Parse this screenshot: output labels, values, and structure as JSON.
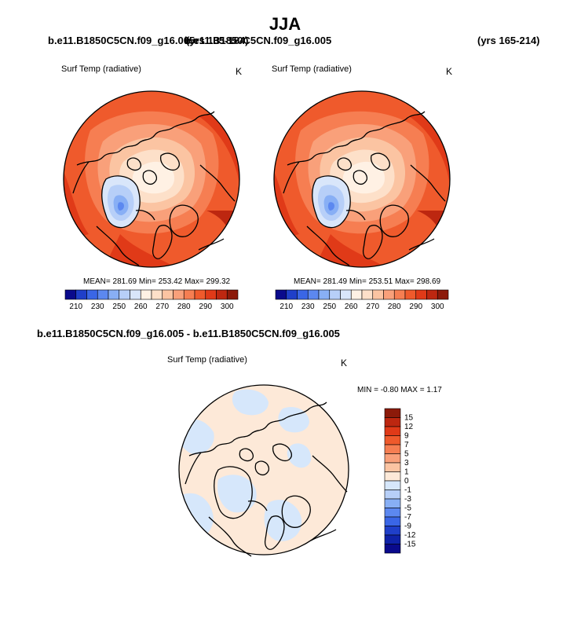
{
  "title": "JJA",
  "top_left": {
    "case_label": "b.e11.B1850C5CN.f09_g16.005",
    "years_label": "(yrs 135-184)",
    "variable": "Surf Temp (radiative)",
    "units": "K",
    "stats": "MEAN= 281.69  Min= 253.42  Max= 299.32"
  },
  "top_right": {
    "case_label": "b.e11.B1850C5CN.f09_g16.005",
    "years_label": "(yrs 165-214)",
    "variable": "Surf Temp (radiative)",
    "units": "K",
    "stats": "MEAN= 281.49  Min= 253.51  Max= 298.69"
  },
  "bottom": {
    "diff_label": "b.e11.B1850C5CN.f09_g16.005 - b.e11.B1850C5CN.f09_g16.005",
    "variable": "Surf Temp (radiative)",
    "units": "K",
    "stats": "MIN =  -0.80 MAX =   1.17"
  },
  "chart_data": [
    {
      "type": "heatmap",
      "projection": "north polar stereographic",
      "variable": "Surf Temp (radiative)",
      "units": "K",
      "mean": 281.69,
      "min": 253.42,
      "max": 299.32,
      "colorbar": {
        "orientation": "horizontal",
        "ticks": [
          "210",
          "230",
          "250",
          "260",
          "270",
          "280",
          "290",
          "300"
        ],
        "colors": [
          "#0a0a8c",
          "#1f3fc9",
          "#3a66e6",
          "#5c88f0",
          "#88aff5",
          "#b7cff8",
          "#d9e6fa",
          "#fff1e4",
          "#fde0c9",
          "#fbc4a2",
          "#f9a07a",
          "#f67e52",
          "#ef5a2c",
          "#e03a18",
          "#bd2710",
          "#8c1a0a"
        ]
      }
    },
    {
      "type": "heatmap",
      "projection": "north polar stereographic",
      "variable": "Surf Temp (radiative)",
      "units": "K",
      "mean": 281.49,
      "min": 253.51,
      "max": 298.69,
      "colorbar": {
        "orientation": "horizontal",
        "ticks": [
          "210",
          "230",
          "250",
          "260",
          "270",
          "280",
          "290",
          "300"
        ],
        "colors": [
          "#0a0a8c",
          "#1f3fc9",
          "#3a66e6",
          "#5c88f0",
          "#88aff5",
          "#b7cff8",
          "#d9e6fa",
          "#fff1e4",
          "#fde0c9",
          "#fbc4a2",
          "#f9a07a",
          "#f67e52",
          "#ef5a2c",
          "#e03a18",
          "#bd2710",
          "#8c1a0a"
        ]
      }
    },
    {
      "type": "heatmap",
      "projection": "north polar stereographic",
      "variable": "Surf Temp (radiative)",
      "units": "K",
      "min": -0.8,
      "max": 1.17,
      "colorbar": {
        "orientation": "vertical",
        "ticks": [
          "15",
          "12",
          "9",
          "7",
          "5",
          "3",
          "1",
          "0",
          "-1",
          "-3",
          "-5",
          "-7",
          "-9",
          "-12",
          "-15"
        ],
        "colors": [
          "#8c1a0a",
          "#bd2710",
          "#e03a18",
          "#ef5a2c",
          "#f67e52",
          "#f9a07a",
          "#fbc4a2",
          "#fde9d8",
          "#d6e7fb",
          "#b7cff8",
          "#88aff5",
          "#5c88f0",
          "#3a66e6",
          "#1f3fc9",
          "#0f22a8",
          "#0a0a8c"
        ]
      }
    }
  ]
}
